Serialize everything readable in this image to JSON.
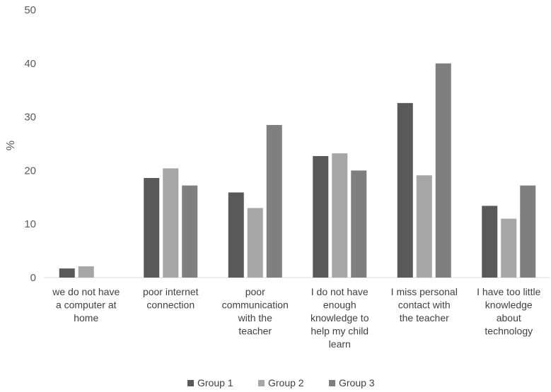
{
  "chart_data": {
    "type": "bar",
    "title": "",
    "xlabel": "",
    "ylabel": "%",
    "ylim": [
      0,
      50
    ],
    "yticks": [
      0,
      10,
      20,
      30,
      40,
      50
    ],
    "grid": false,
    "legend_position": "bottom",
    "categories": [
      [
        "we do not have",
        "a computer at",
        "home"
      ],
      [
        "poor internet",
        "connection"
      ],
      [
        "poor",
        "communication",
        "with the",
        "teacher"
      ],
      [
        "I do not have",
        "enough",
        "knowledge to",
        "help my child",
        "learn"
      ],
      [
        "I miss personal",
        "contact with",
        "the teacher"
      ],
      [
        "I have too little",
        "knowledge",
        "about",
        "technology"
      ]
    ],
    "series": [
      {
        "name": "Group 1",
        "color": "#595959",
        "values": [
          1.7,
          18.6,
          15.9,
          22.7,
          32.6,
          13.4
        ]
      },
      {
        "name": "Group 2",
        "color": "#a6a6a6",
        "values": [
          2.1,
          20.4,
          13.0,
          23.2,
          19.1,
          11.0
        ]
      },
      {
        "name": "Group 3",
        "color": "#7f7f7f",
        "values": [
          0,
          17.2,
          28.5,
          20.0,
          40.0,
          17.2
        ]
      }
    ]
  }
}
